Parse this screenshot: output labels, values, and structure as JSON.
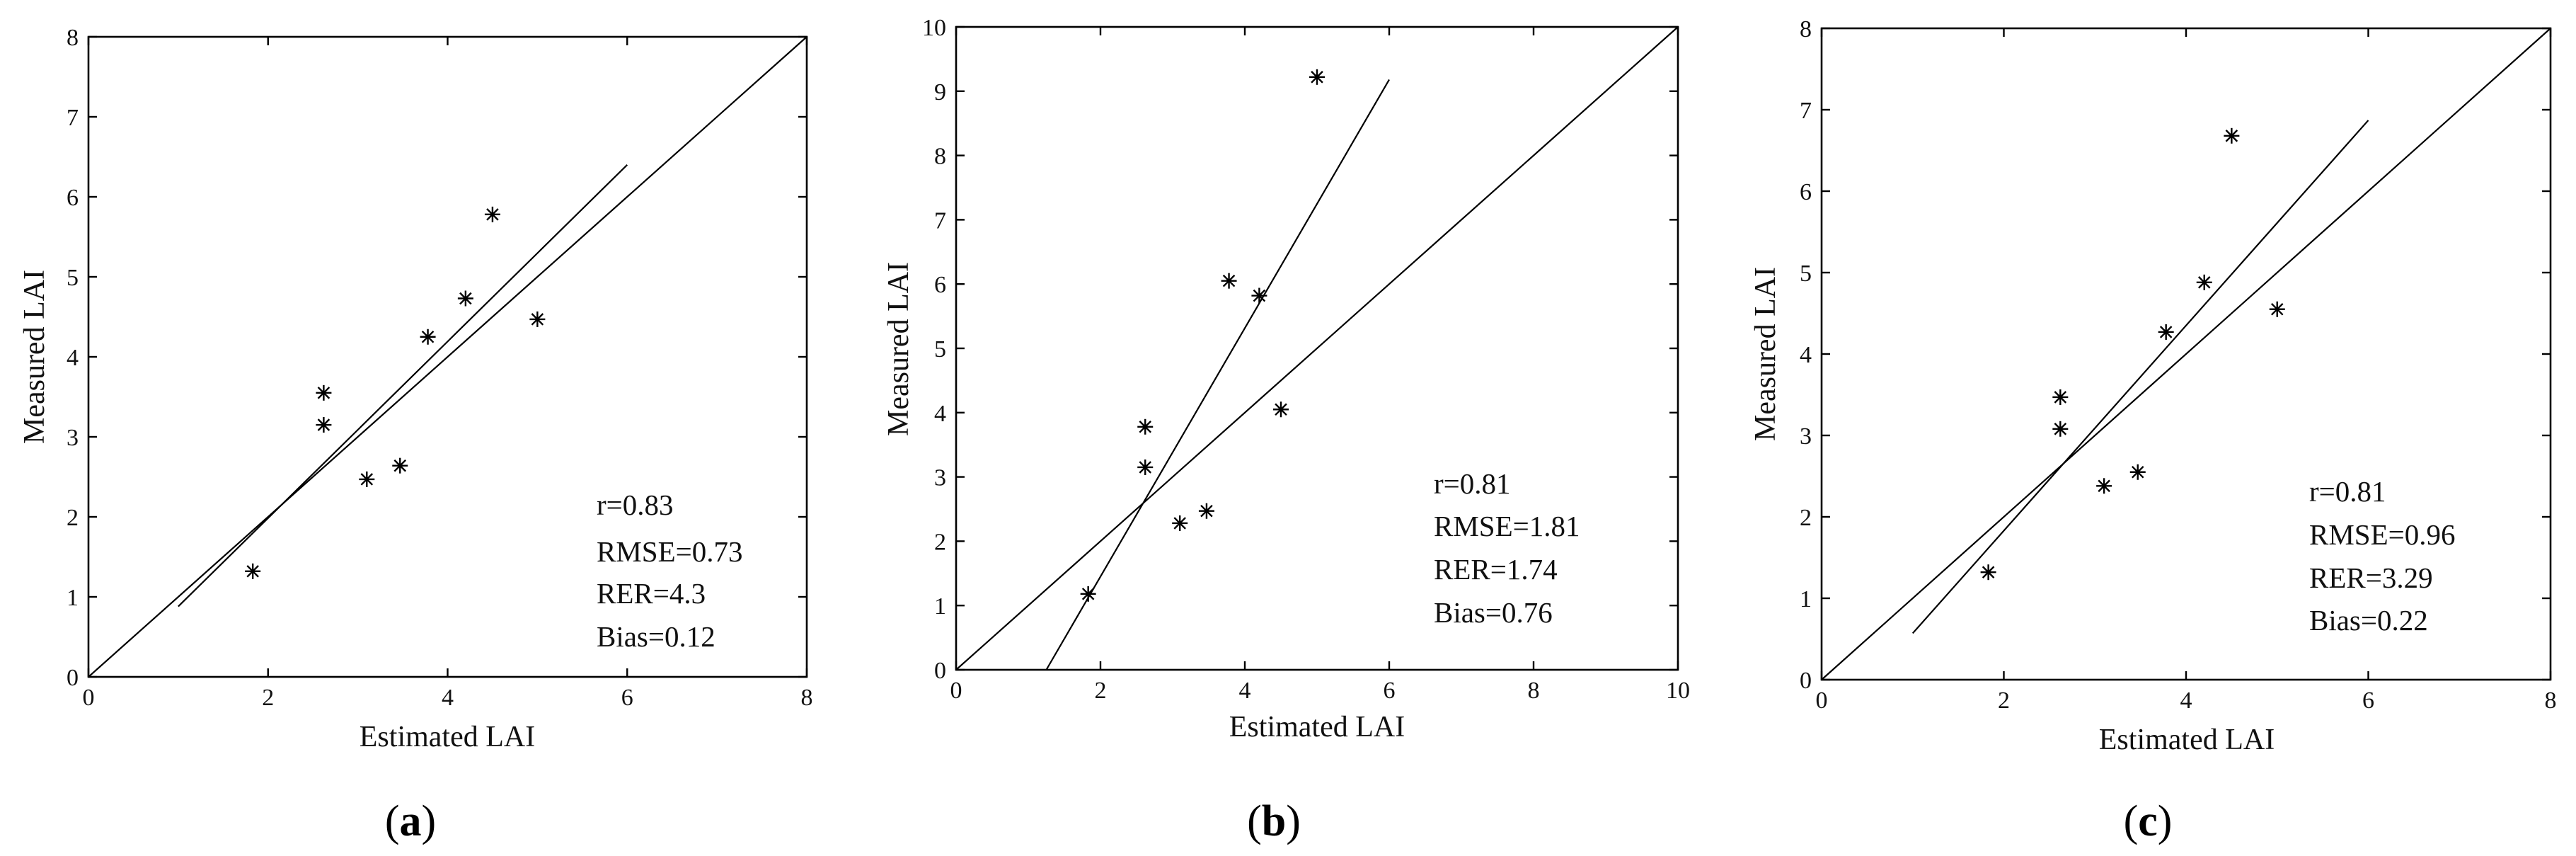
{
  "chart_data": [
    {
      "type": "scatter",
      "panel_label": "a",
      "xlabel": "Estimated LAI",
      "ylabel": "Measured LAI",
      "xlim": [
        0,
        8
      ],
      "ylim": [
        0,
        8
      ],
      "xticks": [
        "0",
        "2",
        "4",
        "6",
        "8"
      ],
      "yticks": [
        "0",
        "1",
        "2",
        "3",
        "4",
        "5",
        "6",
        "7",
        "8"
      ],
      "points": [
        {
          "x": 1.83,
          "y": 1.32
        },
        {
          "x": 2.62,
          "y": 3.55
        },
        {
          "x": 2.62,
          "y": 3.15
        },
        {
          "x": 3.1,
          "y": 2.47
        },
        {
          "x": 3.47,
          "y": 2.64
        },
        {
          "x": 3.78,
          "y": 4.25
        },
        {
          "x": 4.2,
          "y": 4.73
        },
        {
          "x": 4.5,
          "y": 5.78
        },
        {
          "x": 5.0,
          "y": 4.47
        }
      ],
      "reference_line": {
        "x": [
          0,
          8
        ],
        "y": [
          0,
          8
        ]
      },
      "fit_line": {
        "x": [
          1.0,
          6.0
        ],
        "y": [
          0.88,
          6.4
        ]
      },
      "stats": [
        "r=0.83",
        "RMSE=0.73",
        "RER=4.3",
        "Bias=0.12"
      ]
    },
    {
      "type": "scatter",
      "panel_label": "b",
      "xlabel": "Estimated LAI",
      "ylabel": "Measured LAI",
      "xlim": [
        0,
        10
      ],
      "ylim": [
        0,
        10
      ],
      "xticks": [
        "0",
        "2",
        "4",
        "6",
        "8",
        "10"
      ],
      "yticks": [
        "0",
        "1",
        "2",
        "3",
        "4",
        "5",
        "6",
        "7",
        "8",
        "9",
        "10"
      ],
      "points": [
        {
          "x": 1.83,
          "y": 1.18
        },
        {
          "x": 2.62,
          "y": 3.78
        },
        {
          "x": 2.62,
          "y": 3.15
        },
        {
          "x": 3.1,
          "y": 2.28
        },
        {
          "x": 3.47,
          "y": 2.47
        },
        {
          "x": 3.78,
          "y": 6.05
        },
        {
          "x": 4.2,
          "y": 5.82
        },
        {
          "x": 4.5,
          "y": 4.05
        },
        {
          "x": 5.0,
          "y": 9.22
        }
      ],
      "reference_line": {
        "x": [
          0,
          10
        ],
        "y": [
          0,
          10
        ]
      },
      "fit_line": {
        "x": [
          1.25,
          6.0
        ],
        "y": [
          0.0,
          9.18
        ]
      },
      "stats": [
        "r=0.81",
        "RMSE=1.81",
        "RER=1.74",
        "Bias=0.76"
      ]
    },
    {
      "type": "scatter",
      "panel_label": "c",
      "xlabel": "Estimated LAI",
      "ylabel": "Measured LAI",
      "xlim": [
        0,
        8
      ],
      "ylim": [
        0,
        8
      ],
      "xticks": [
        "0",
        "2",
        "4",
        "6",
        "8"
      ],
      "yticks": [
        "0",
        "1",
        "2",
        "3",
        "4",
        "5",
        "6",
        "7",
        "8"
      ],
      "points": [
        {
          "x": 1.83,
          "y": 1.32
        },
        {
          "x": 2.62,
          "y": 3.47
        },
        {
          "x": 2.62,
          "y": 3.08
        },
        {
          "x": 3.1,
          "y": 2.38
        },
        {
          "x": 3.47,
          "y": 2.55
        },
        {
          "x": 3.78,
          "y": 4.27
        },
        {
          "x": 4.2,
          "y": 4.88
        },
        {
          "x": 4.5,
          "y": 6.68
        },
        {
          "x": 5.0,
          "y": 4.55
        }
      ],
      "reference_line": {
        "x": [
          0,
          8
        ],
        "y": [
          0,
          8
        ]
      },
      "fit_line": {
        "x": [
          1.0,
          6.0
        ],
        "y": [
          0.57,
          6.87
        ]
      },
      "stats": [
        "r=0.81",
        "RMSE=0.96",
        "RER=3.29",
        "Bias=0.22"
      ]
    }
  ]
}
